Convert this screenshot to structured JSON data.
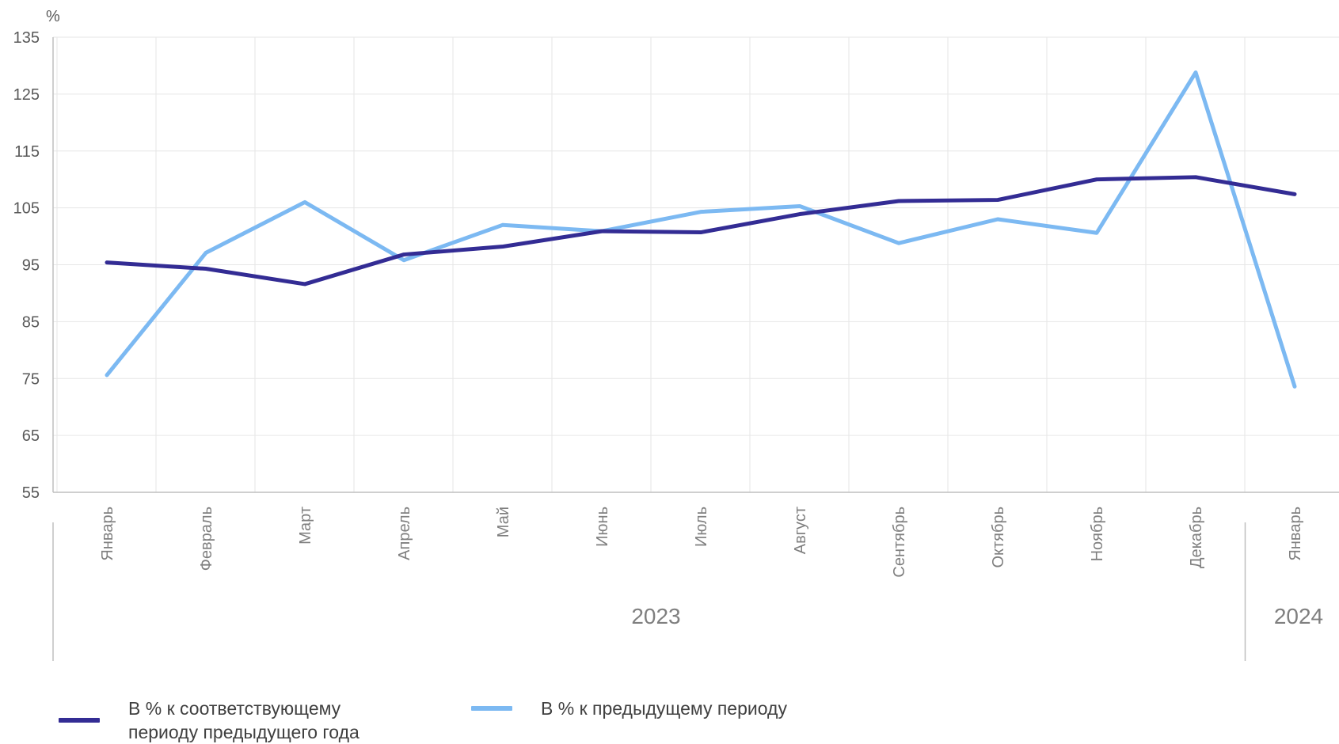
{
  "chart_data": {
    "type": "line",
    "ylabel": "%",
    "ylim": [
      55,
      135
    ],
    "yticks": [
      55,
      65,
      75,
      85,
      95,
      105,
      115,
      125,
      135
    ],
    "categories": [
      "Январь",
      "Февраль",
      "Март",
      "Апрель",
      "Май",
      "Июнь",
      "Июль",
      "Август",
      "Сентябрь",
      "Октябрь",
      "Ноябрь",
      "Декабрь",
      "Январь"
    ],
    "year_groups": [
      {
        "label": "2023",
        "count": 12
      },
      {
        "label": "2024",
        "count": 1
      }
    ],
    "series": [
      {
        "name": "В % к соответствующему периоду предыдущего года",
        "name_lines": [
          "В % к соответствующему",
          "периоду предыдущего года"
        ],
        "color": "#332c94",
        "values": [
          95.4,
          94.3,
          91.6,
          96.8,
          98.2,
          100.9,
          100.7,
          103.9,
          106.2,
          106.4,
          110.0,
          110.4,
          107.4
        ]
      },
      {
        "name": "В % к предыдущему периоду",
        "name_lines": [
          "В % к предыдущему периоду"
        ],
        "color": "#7cb9f2",
        "values": [
          75.6,
          97.1,
          106.0,
          95.8,
          102.0,
          100.9,
          104.3,
          105.3,
          98.8,
          103.0,
          100.6,
          128.8,
          73.6
        ]
      }
    ],
    "grid": true,
    "legend": "bottom-left"
  }
}
